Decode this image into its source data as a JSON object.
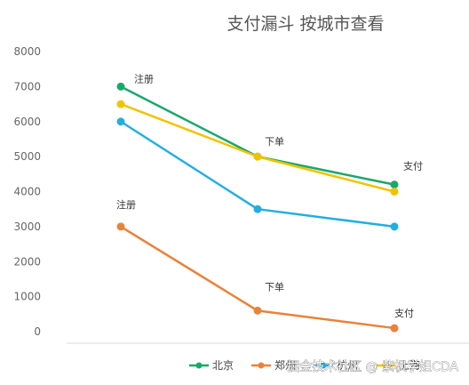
{
  "chart_data": {
    "type": "line",
    "title": "支付漏斗 按城市查看",
    "categories": [
      "注册",
      "下单",
      "支付"
    ],
    "ylim": [
      0,
      8000
    ],
    "yticks": [
      "8000",
      "7000",
      "6000",
      "5000",
      "4000",
      "3000",
      "2000",
      "1000",
      "0"
    ],
    "grid": false,
    "legend_position": "bottom",
    "series": [
      {
        "name": "北京",
        "color": "#1aa86a",
        "values": [
          7000,
          5000,
          4200
        ]
      },
      {
        "name": "郑州",
        "color": "#e8833a",
        "values": [
          3000,
          600,
          100
        ]
      },
      {
        "name": "杭州",
        "color": "#22aee0",
        "values": [
          6000,
          3500,
          3000
        ]
      },
      {
        "name": "上海",
        "color": "#f2c200",
        "values": [
          6500,
          5000,
          4000
        ]
      }
    ],
    "annotations": [
      {
        "text": "注册",
        "x": "注册",
        "y": 7000
      },
      {
        "text": "下单",
        "x": "下单",
        "y": 5000
      },
      {
        "text": "支付",
        "x": "支付",
        "y": 4200
      },
      {
        "text": "注册",
        "x": "注册",
        "y": 3000
      },
      {
        "text": "下单",
        "x": "下单",
        "y": 600
      },
      {
        "text": "支付",
        "x": "支付",
        "y": 100
      }
    ]
  },
  "watermark": "掘金技术社区 @ 紫枫学姐CDA"
}
